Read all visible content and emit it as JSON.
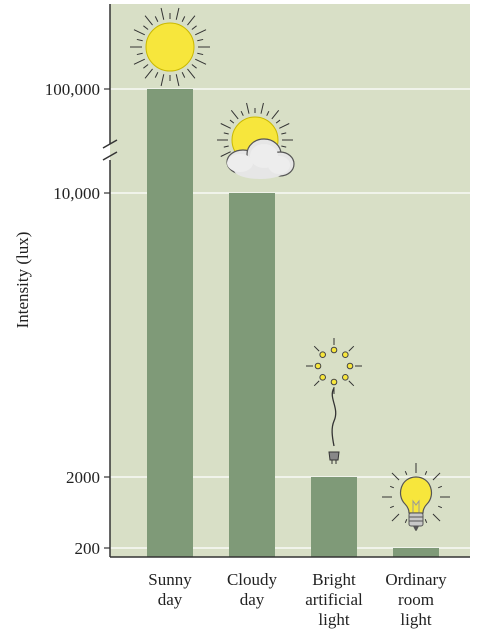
{
  "chart_data": {
    "type": "bar",
    "categories": [
      "Sunny\nday",
      "Cloudy\nday",
      "Bright\nartificial\nlight",
      "Ordinary\nroom\nlight"
    ],
    "values": [
      100000,
      10000,
      2000,
      200
    ],
    "ylabel": "Intensity (lux)",
    "yticks": [
      200,
      2000,
      10000,
      100000
    ],
    "ytick_labels": [
      "200",
      "2000",
      "10,000",
      "100,000"
    ],
    "scale": "broken, non-linear",
    "axis_break": true,
    "grid": true,
    "icons": [
      "sun-icon",
      "sun-cloud-icon",
      "light-sparkle-icon",
      "lightbulb-icon"
    ],
    "colors": {
      "background": "#d8dfc6",
      "bar": "#7f9a78",
      "grid": "#ffffff",
      "sun": "#f7e63c"
    }
  }
}
